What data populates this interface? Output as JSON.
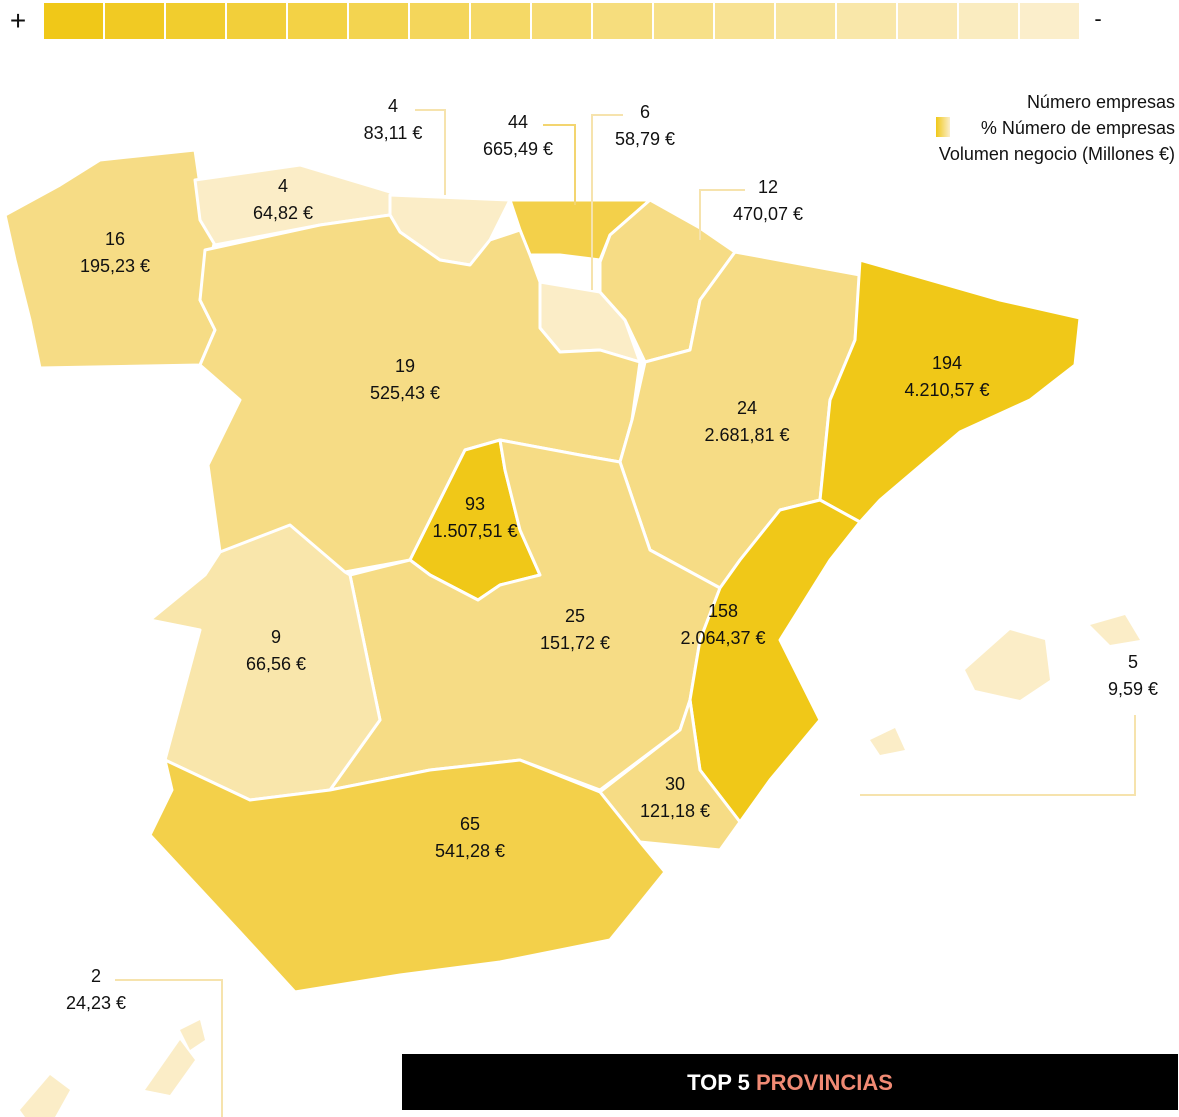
{
  "legend_bar": {
    "plus": "+",
    "minus": "-"
  },
  "legend": {
    "line1": "Número empresas",
    "line2": "% Número de empresas",
    "line3": "Volumen negocio (Millones €)"
  },
  "regions": [
    {
      "count": "16",
      "volume": "195,23 €"
    },
    {
      "count": "4",
      "volume": "64,82 €"
    },
    {
      "count": "4",
      "volume": "83,11 €"
    },
    {
      "count": "44",
      "volume": "665,49 €"
    },
    {
      "count": "6",
      "volume": "58,79 €"
    },
    {
      "count": "12",
      "volume": "470,07 €"
    },
    {
      "count": "19",
      "volume": "525,43 €"
    },
    {
      "count": "24",
      "volume": "2.681,81 €"
    },
    {
      "count": "194",
      "volume": "4.210,57 €"
    },
    {
      "count": "93",
      "volume": "1.507,51 €"
    },
    {
      "count": "25",
      "volume": "151,72 €"
    },
    {
      "count": "9",
      "volume": "66,56 €"
    },
    {
      "count": "158",
      "volume": "2.064,37 €"
    },
    {
      "count": "30",
      "volume": "121,18 €"
    },
    {
      "count": "65",
      "volume": "541,28 €"
    },
    {
      "count": "5",
      "volume": "9,59 €"
    },
    {
      "count": "2",
      "volume": "24,23 €"
    }
  ],
  "footer": {
    "top": "TOP 5",
    "provincias": "PROVINCIAS"
  }
}
